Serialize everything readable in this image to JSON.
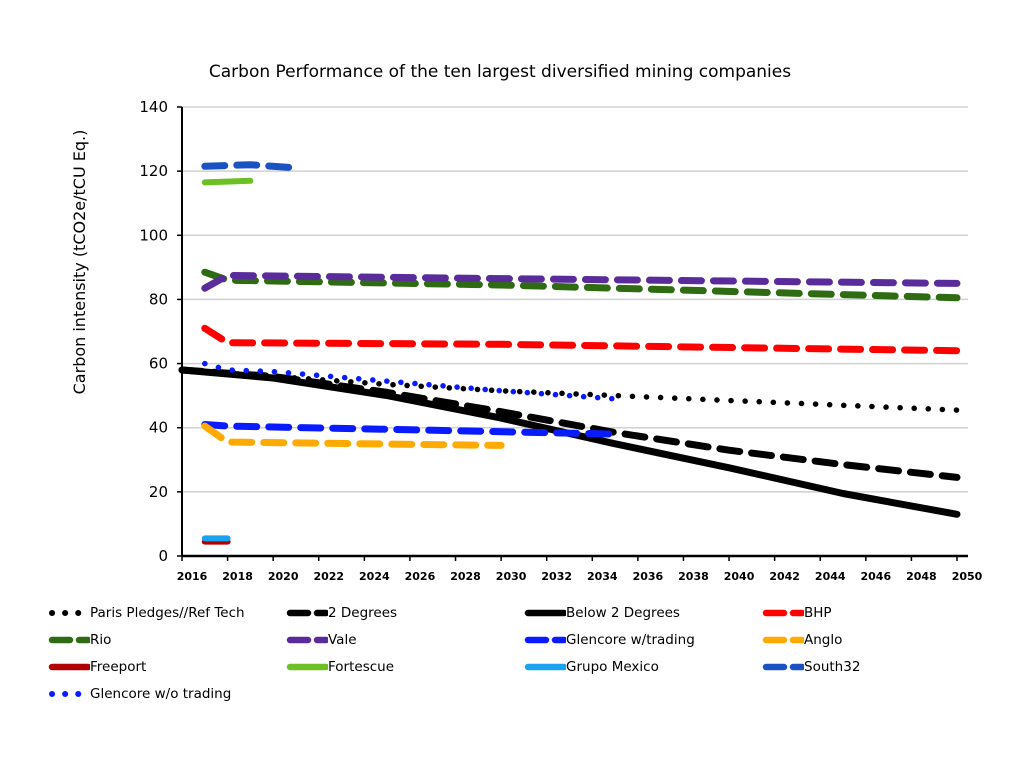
{
  "chart_data": {
    "type": "line",
    "title": "Carbon Performance of the ten largest diversified mining companies",
    "xlabel": "",
    "ylabel": "Carbon intensity (tCO2e/tCU Eq.)",
    "ylim": [
      0,
      140
    ],
    "yticks": [
      "0",
      "20",
      "40",
      "60",
      "80",
      "100",
      "120",
      "140"
    ],
    "xlim": [
      2016,
      2050
    ],
    "xticks": [
      "2016",
      "2018",
      "2020",
      "2022",
      "2024",
      "2026",
      "2028",
      "2030",
      "2032",
      "2034",
      "2036",
      "2038",
      "2040",
      "2042",
      "2044",
      "2046",
      "2048",
      "2050"
    ],
    "grid": true,
    "legend_placement": "bottom",
    "series": [
      {
        "name": "Paris Pledges//Ref Tech",
        "color": "#000000",
        "style": "dotted",
        "x": [
          2016,
          2020,
          2025,
          2030,
          2035,
          2040,
          2045,
          2050
        ],
        "values": [
          58,
          56,
          53.5,
          51.5,
          50,
          48.5,
          47,
          45.5
        ]
      },
      {
        "name": "2 Degrees",
        "color": "#000000",
        "style": "dashed",
        "x": [
          2016,
          2020,
          2025,
          2030,
          2035,
          2040,
          2045,
          2050
        ],
        "values": [
          58,
          56,
          51,
          45,
          38.5,
          33,
          28.5,
          24.5
        ]
      },
      {
        "name": "Below 2 Degrees",
        "color": "#000000",
        "style": "solid",
        "x": [
          2016,
          2020,
          2025,
          2030,
          2035,
          2040,
          2045,
          2050
        ],
        "values": [
          58,
          55.5,
          50,
          43,
          35,
          27.5,
          19.5,
          13
        ]
      },
      {
        "name": "BHP",
        "color": "#ff0000",
        "style": "dashed",
        "x": [
          2017,
          2018,
          2030,
          2050
        ],
        "values": [
          71,
          66.5,
          66,
          64
        ]
      },
      {
        "name": "Rio",
        "color": "#2e6b12",
        "style": "dashed",
        "x": [
          2017,
          2018,
          2030,
          2050
        ],
        "values": [
          88.5,
          86,
          84.5,
          80.5
        ]
      },
      {
        "name": "Vale",
        "color": "#5a2b9a",
        "style": "dashed",
        "x": [
          2017,
          2018,
          2030,
          2050
        ],
        "values": [
          83.5,
          87.5,
          86.5,
          85
        ]
      },
      {
        "name": "Glencore w/trading",
        "color": "#0a1cff",
        "style": "dashed",
        "x": [
          2017,
          2018,
          2025,
          2035
        ],
        "values": [
          41,
          40.5,
          39.5,
          38
        ]
      },
      {
        "name": "Anglo",
        "color": "#ffaa00",
        "style": "dashed",
        "x": [
          2017,
          2018,
          2030
        ],
        "values": [
          40.5,
          35.5,
          34.5
        ]
      },
      {
        "name": "Freeport",
        "color": "#b00000",
        "style": "solid",
        "x": [
          2017,
          2018
        ],
        "values": [
          4.5,
          4.5
        ]
      },
      {
        "name": "Fortescue",
        "color": "#6cc024",
        "style": "solid",
        "x": [
          2017,
          2019
        ],
        "values": [
          116.5,
          117
        ]
      },
      {
        "name": "Grupo Mexico",
        "color": "#1aa3f0",
        "style": "solid",
        "x": [
          2017,
          2018
        ],
        "values": [
          5.5,
          5.5
        ]
      },
      {
        "name": "South32",
        "color": "#1a52c4",
        "style": "dashed",
        "x": [
          2017,
          2019,
          2021
        ],
        "values": [
          121.5,
          122,
          121
        ]
      },
      {
        "name": "Glencore w/o trading",
        "color": "#0a1cff",
        "style": "dotted",
        "x": [
          2017,
          2018,
          2020,
          2025,
          2030,
          2035
        ],
        "values": [
          60,
          58,
          57.5,
          54.5,
          51.5,
          49
        ]
      }
    ]
  }
}
